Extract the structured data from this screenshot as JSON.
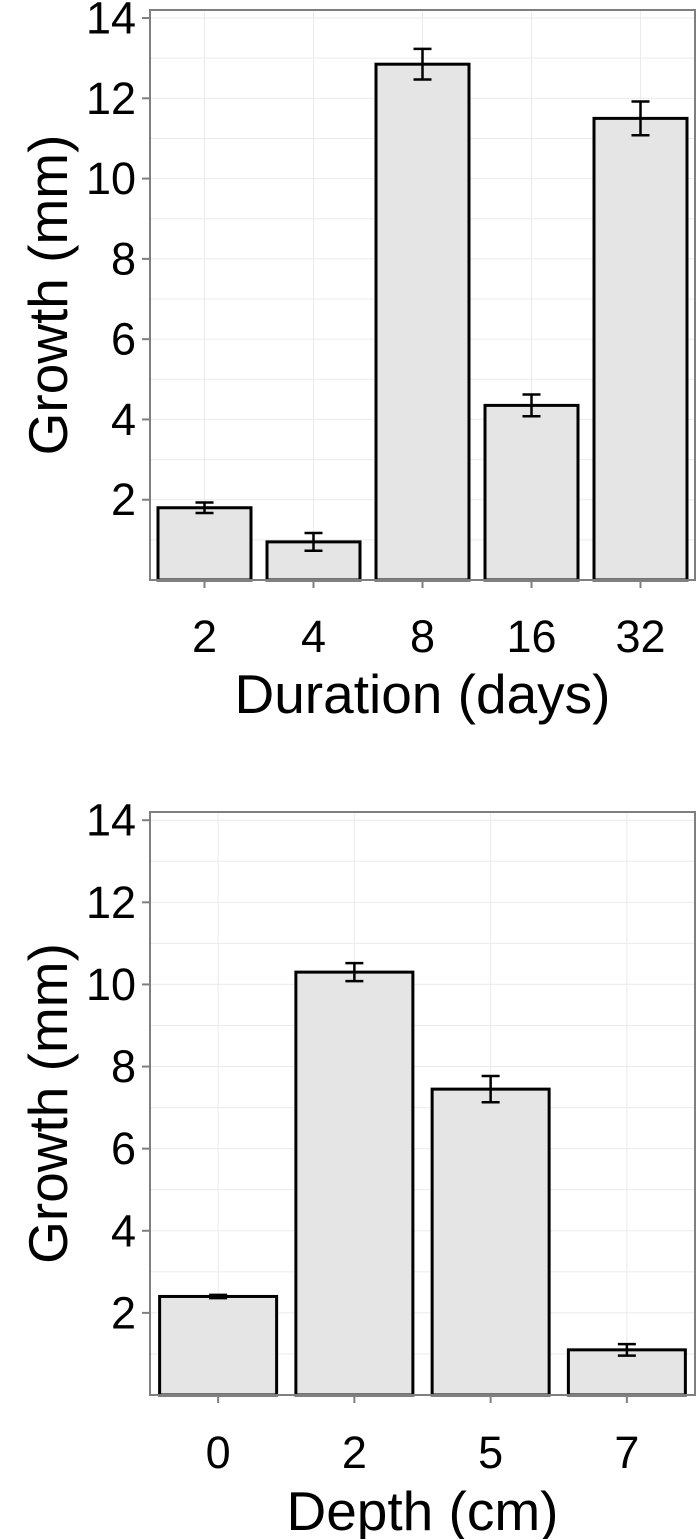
{
  "chart_data": [
    {
      "type": "bar",
      "categories": [
        "2",
        "4",
        "8",
        "16",
        "32"
      ],
      "values": [
        1.8,
        0.95,
        12.85,
        4.35,
        11.5
      ],
      "error": [
        0.13,
        0.22,
        0.38,
        0.27,
        0.42
      ],
      "xlabel": "Duration (days)",
      "ylabel": "Growth (mm)",
      "ylim": [
        0,
        14.2
      ],
      "yticks": [
        2,
        4,
        6,
        8,
        10,
        12,
        14
      ],
      "grid": true,
      "colors": {
        "bar_fill": "#e5e5e5",
        "bar_stroke": "#000000"
      }
    },
    {
      "type": "bar",
      "categories": [
        "0",
        "2",
        "5",
        "7"
      ],
      "values": [
        2.4,
        10.3,
        7.45,
        1.1
      ],
      "error": [
        0.04,
        0.22,
        0.32,
        0.14
      ],
      "xlabel": "Depth (cm)",
      "ylabel": "Growth (mm)",
      "ylim": [
        0,
        14.2
      ],
      "yticks": [
        2,
        4,
        6,
        8,
        10,
        12,
        14
      ],
      "grid": true,
      "colors": {
        "bar_fill": "#e5e5e5",
        "bar_stroke": "#000000"
      }
    }
  ]
}
